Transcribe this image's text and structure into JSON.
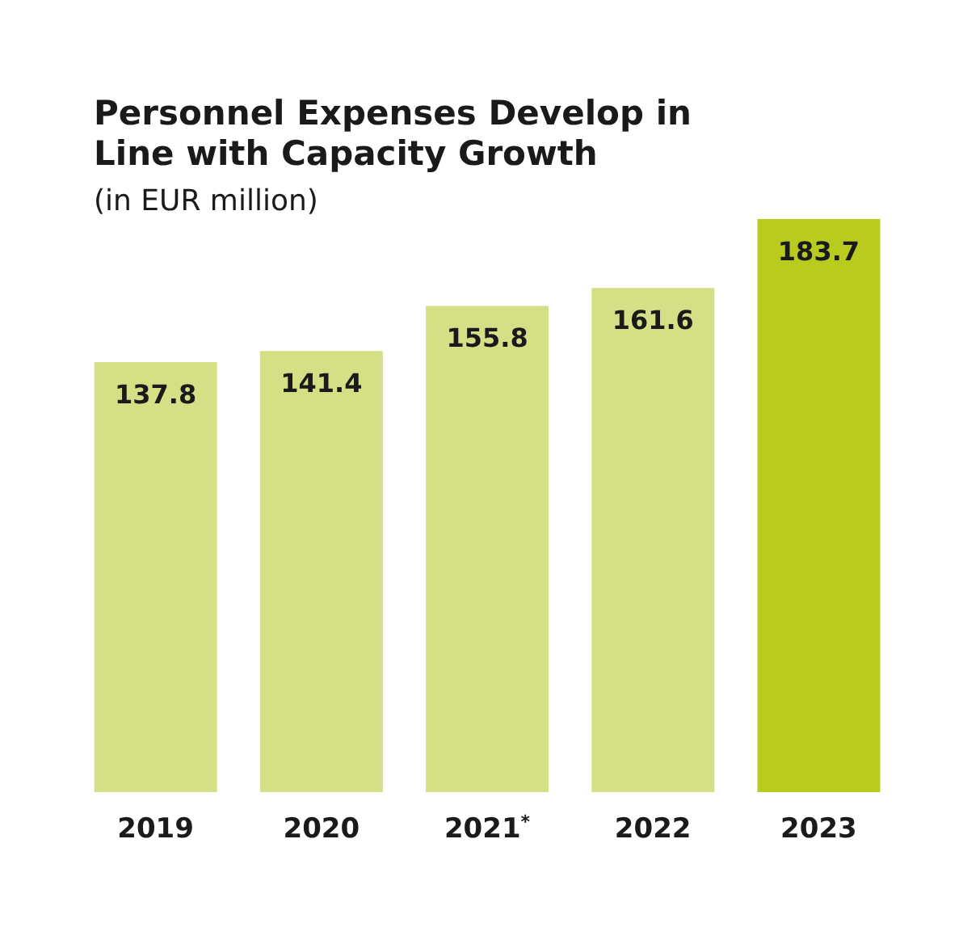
{
  "chart_data": {
    "type": "bar",
    "title": "Personnel Expenses Develop in Line with Capacity Growth",
    "subtitle": "(in EUR million)",
    "categories": [
      "2019",
      "2020",
      "2021$^{*}$",
      "2022",
      "2023"
    ],
    "values": [
      137.8,
      141.4,
      155.8,
      161.6,
      183.7
    ],
    "colors": [
      "#d5df85",
      "#d5df85",
      "#d5df85",
      "#d5df85",
      "#b8cb1e"
    ],
    "data_labels": true,
    "grid": false,
    "legend": false,
    "tick_labels": "x"
  }
}
